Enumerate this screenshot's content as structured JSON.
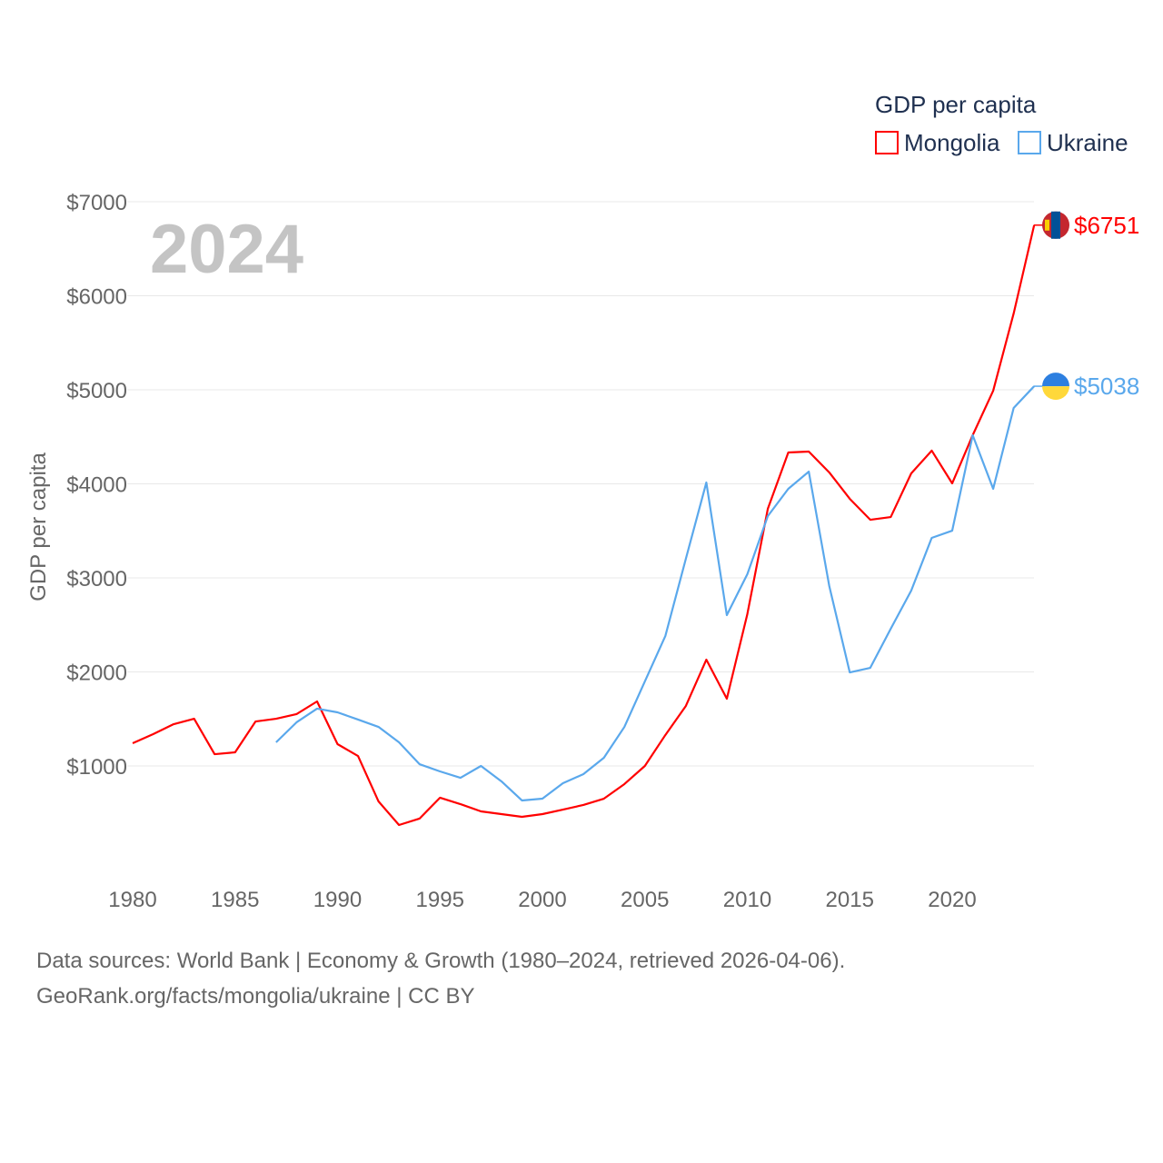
{
  "chart_data": {
    "type": "line",
    "title": "GDP per capita",
    "ylabel": "GDP per capita",
    "xlabel": "",
    "year_label": "2024",
    "xlim": [
      1980,
      2024
    ],
    "ylim": [
      0,
      7000
    ],
    "x_ticks": [
      "1980",
      "1985",
      "1990",
      "1995",
      "2000",
      "2005",
      "2010",
      "2015",
      "2020"
    ],
    "y_ticks": [
      "$1000",
      "$2000",
      "$3000",
      "$4000",
      "$5000",
      "$6000",
      "$7000"
    ],
    "grid": true,
    "legend_placement": "top-right",
    "series": [
      {
        "name": "Mongolia",
        "color": "#ff0000",
        "end_label": "$6751",
        "start_year": 1980,
        "values": [
          1241,
          1338,
          1444,
          1502,
          1125,
          1145,
          1473,
          1502,
          1551,
          1686,
          1232,
          1106,
          623,
          372,
          440,
          662,
          594,
          517,
          488,
          459,
          488,
          536,
          585,
          652,
          807,
          1000,
          1329,
          1638,
          2130,
          1715,
          2614,
          3734,
          4333,
          4343,
          4121,
          3841,
          3618,
          3647,
          4111,
          4353,
          4005,
          4517,
          4990,
          5812,
          6751
        ]
      },
      {
        "name": "Ukraine",
        "color": "#5aa8ec",
        "end_label": "$5038",
        "start_year": 1987,
        "values": [
          1251,
          1464,
          1609,
          1570,
          1493,
          1415,
          1251,
          1019,
          942,
          874,
          1000,
          836,
          633,
          652,
          816,
          913,
          1087,
          1415,
          1899,
          2382,
          3203,
          4014,
          2604,
          3039,
          3657,
          3947,
          4130,
          2913,
          1995,
          2043,
          2459,
          2865,
          3425,
          3502,
          4517,
          3947,
          4807,
          5038
        ]
      }
    ]
  },
  "footer": {
    "line1": "Data sources: World Bank | Economy & Growth (1980–2024, retrieved 2026-04-06).",
    "line2": "GeoRank.org/facts/mongolia/ukraine | CC BY"
  }
}
